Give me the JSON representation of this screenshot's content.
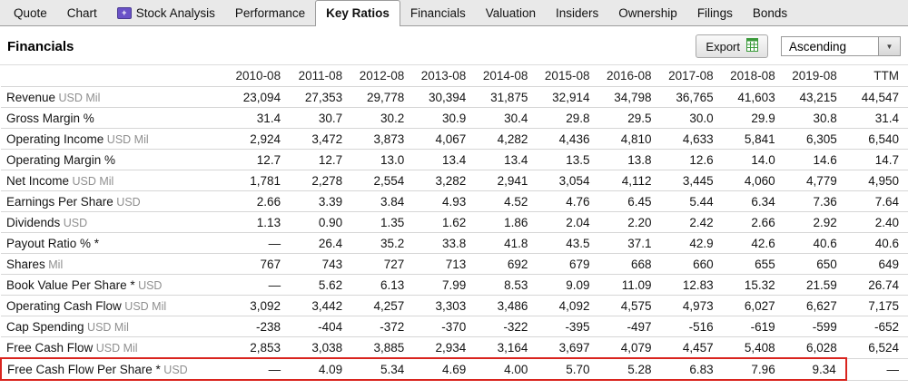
{
  "tabs": [
    {
      "label": "Quote"
    },
    {
      "label": "Chart"
    },
    {
      "label": "Stock Analysis",
      "icon": "stock-analysis-badge"
    },
    {
      "label": "Performance"
    },
    {
      "label": "Key Ratios",
      "active": true
    },
    {
      "label": "Financials"
    },
    {
      "label": "Valuation"
    },
    {
      "label": "Insiders"
    },
    {
      "label": "Ownership"
    },
    {
      "label": "Filings"
    },
    {
      "label": "Bonds"
    }
  ],
  "header": {
    "title": "Financials",
    "export_label": "Export",
    "sort_value": "Ascending"
  },
  "colors": {
    "highlight_border": "#d9241e",
    "stock_analysis_badge": "#6a52c7",
    "export_icon_green": "#3a9a3a"
  },
  "table": {
    "columns": [
      "2010-08",
      "2011-08",
      "2012-08",
      "2013-08",
      "2014-08",
      "2015-08",
      "2016-08",
      "2017-08",
      "2018-08",
      "2019-08",
      "TTM"
    ],
    "rows": [
      {
        "label": "Revenue",
        "unit": "USD Mil",
        "values": [
          "23,094",
          "27,353",
          "29,778",
          "30,394",
          "31,875",
          "32,914",
          "34,798",
          "36,765",
          "41,603",
          "43,215",
          "44,547"
        ]
      },
      {
        "label": "Gross Margin %",
        "unit": "",
        "values": [
          "31.4",
          "30.7",
          "30.2",
          "30.9",
          "30.4",
          "29.8",
          "29.5",
          "30.0",
          "29.9",
          "30.8",
          "31.4"
        ]
      },
      {
        "label": "Operating Income",
        "unit": "USD Mil",
        "values": [
          "2,924",
          "3,472",
          "3,873",
          "4,067",
          "4,282",
          "4,436",
          "4,810",
          "4,633",
          "5,841",
          "6,305",
          "6,540"
        ]
      },
      {
        "label": "Operating Margin %",
        "unit": "",
        "values": [
          "12.7",
          "12.7",
          "13.0",
          "13.4",
          "13.4",
          "13.5",
          "13.8",
          "12.6",
          "14.0",
          "14.6",
          "14.7"
        ]
      },
      {
        "label": "Net Income",
        "unit": "USD Mil",
        "values": [
          "1,781",
          "2,278",
          "2,554",
          "3,282",
          "2,941",
          "3,054",
          "4,112",
          "3,445",
          "4,060",
          "4,779",
          "4,950"
        ]
      },
      {
        "label": "Earnings Per Share",
        "unit": "USD",
        "values": [
          "2.66",
          "3.39",
          "3.84",
          "4.93",
          "4.52",
          "4.76",
          "6.45",
          "5.44",
          "6.34",
          "7.36",
          "7.64"
        ]
      },
      {
        "label": "Dividends",
        "unit": "USD",
        "values": [
          "1.13",
          "0.90",
          "1.35",
          "1.62",
          "1.86",
          "2.04",
          "2.20",
          "2.42",
          "2.66",
          "2.92",
          "2.40"
        ]
      },
      {
        "label": "Payout Ratio % *",
        "unit": "",
        "values": [
          "—",
          "26.4",
          "35.2",
          "33.8",
          "41.8",
          "43.5",
          "37.1",
          "42.9",
          "42.6",
          "40.6",
          "40.6"
        ]
      },
      {
        "label": "Shares",
        "unit": "Mil",
        "values": [
          "767",
          "743",
          "727",
          "713",
          "692",
          "679",
          "668",
          "660",
          "655",
          "650",
          "649"
        ]
      },
      {
        "label": "Book Value Per Share *",
        "unit": "USD",
        "values": [
          "—",
          "5.62",
          "6.13",
          "7.99",
          "8.53",
          "9.09",
          "11.09",
          "12.83",
          "15.32",
          "21.59",
          "26.74"
        ]
      },
      {
        "label": "Operating Cash Flow",
        "unit": "USD Mil",
        "values": [
          "3,092",
          "3,442",
          "4,257",
          "3,303",
          "3,486",
          "4,092",
          "4,575",
          "4,973",
          "6,027",
          "6,627",
          "7,175"
        ]
      },
      {
        "label": "Cap Spending",
        "unit": "USD Mil",
        "values": [
          "-238",
          "-404",
          "-372",
          "-370",
          "-322",
          "-395",
          "-497",
          "-516",
          "-619",
          "-599",
          "-652"
        ]
      },
      {
        "label": "Free Cash Flow",
        "unit": "USD Mil",
        "values": [
          "2,853",
          "3,038",
          "3,885",
          "2,934",
          "3,164",
          "3,697",
          "4,079",
          "4,457",
          "5,408",
          "6,028",
          "6,524"
        ]
      },
      {
        "label": "Free Cash Flow Per Share *",
        "unit": "USD",
        "values": [
          "—",
          "4.09",
          "5.34",
          "4.69",
          "4.00",
          "5.70",
          "5.28",
          "6.83",
          "7.96",
          "9.34",
          "—"
        ],
        "highlight": true
      }
    ]
  }
}
